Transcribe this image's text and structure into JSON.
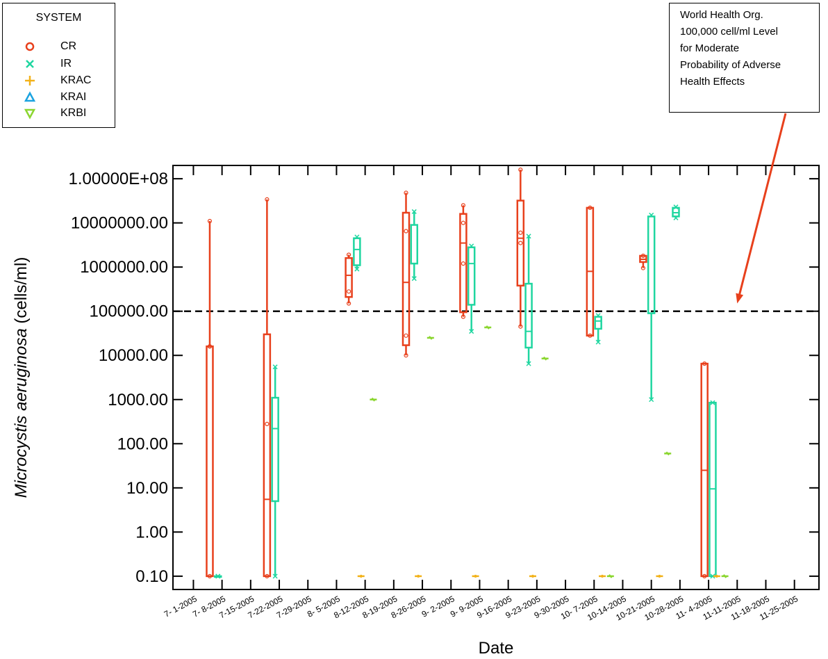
{
  "chart_data": {
    "type": "box",
    "xlabel": "Date",
    "ylabel_italic": "Microcystis aeruginosa",
    "ylabel_units": " (cells/ml)",
    "yscale": "log",
    "ylim": [
      0.05,
      200000000
    ],
    "yticks": [
      {
        "value": 0.1,
        "label": "0.10"
      },
      {
        "value": 1,
        "label": "1.00"
      },
      {
        "value": 10,
        "label": "10.00"
      },
      {
        "value": 100,
        "label": "100.00"
      },
      {
        "value": 1000,
        "label": "1000.00"
      },
      {
        "value": 10000,
        "label": "10000.00"
      },
      {
        "value": 100000,
        "label": "100000.00"
      },
      {
        "value": 1000000,
        "label": "1000000.00"
      },
      {
        "value": 10000000,
        "label": "10000000.00"
      },
      {
        "value": 100000000,
        "label": "1.00000E+08"
      }
    ],
    "xlim": [
      "2005-06-26",
      "2005-12-01"
    ],
    "xticks": [
      "7- 1-2005",
      "7- 8-2005",
      "7-15-2005",
      "7-22-2005",
      "7-29-2005",
      "8- 5-2005",
      "8-12-2005",
      "8-19-2005",
      "8-26-2005",
      "9- 2-2005",
      "9- 9-2005",
      "9-16-2005",
      "9-23-2005",
      "9-30-2005",
      "10- 7-2005",
      "10-14-2005",
      "10-21-2005",
      "10-28-2005",
      "11- 4-2005",
      "11-11-2005",
      "11-18-2005",
      "11-25-2005"
    ],
    "grid": false,
    "legend": {
      "title": "SYSTEM",
      "position": "top-left",
      "entries": [
        {
          "label": "CR",
          "marker": "circle",
          "color": "#e8401c"
        },
        {
          "label": "IR",
          "marker": "x",
          "color": "#1fd6a0"
        },
        {
          "label": "KRAC",
          "marker": "plus",
          "color": "#f2b21a"
        },
        {
          "label": "KRAI",
          "marker": "triangle-up",
          "color": "#1ba3e0"
        },
        {
          "label": "KRBI",
          "marker": "triangle-down",
          "color": "#8bd630"
        }
      ]
    },
    "threshold": {
      "value": 100000,
      "style": "dashed",
      "color": "#000000"
    },
    "annotation": {
      "lines": [
        "World Health Org.",
        "100,000 cell/ml Level",
        "for  Moderate",
        "Probability of Adverse",
        "Health Effects"
      ],
      "arrow_color": "#e8401c",
      "arrow_target": {
        "x": "2005-11-11",
        "y": 150000
      }
    },
    "series": [
      {
        "name": "CR",
        "color": "#e8401c",
        "boxes": [
          {
            "date": "2005-07-05",
            "whisker_low": 0.1,
            "q1": 0.1,
            "median": 16000,
            "q3": 16000,
            "whisker_high": 11000000,
            "points": [
              0.1,
              16000,
              16000,
              11000000
            ]
          },
          {
            "date": "2005-07-19",
            "whisker_low": 0.1,
            "q1": 0.1,
            "median": 5.5,
            "q3": 30000,
            "whisker_high": 34000000,
            "points": [
              0.1,
              280,
              34000000
            ]
          },
          {
            "date": "2005-08-08",
            "whisker_low": 150000,
            "q1": 210000,
            "median": 650000,
            "q3": 1600000,
            "whisker_high": 1900000,
            "points": [
              150000,
              280000,
              1900000
            ]
          },
          {
            "date": "2005-08-22",
            "whisker_low": 10000,
            "q1": 17000,
            "median": 450000,
            "q3": 17000000,
            "whisker_high": 48000000,
            "points": [
              10000,
              28000,
              6500000,
              48000000
            ]
          },
          {
            "date": "2005-09-05",
            "whisker_low": 75000,
            "q1": 95000,
            "median": 3500000,
            "q3": 16000000,
            "whisker_high": 25000000,
            "points": [
              75000,
              1200000,
              10000000,
              25000000
            ]
          },
          {
            "date": "2005-09-19",
            "whisker_low": 45000,
            "q1": 380000,
            "median": 4500000,
            "q3": 32000000,
            "whisker_high": 160000000,
            "points": [
              45000,
              3500000,
              6000000,
              160000000
            ]
          },
          {
            "date": "2005-10-06",
            "whisker_low": 28000,
            "q1": 28000,
            "median": 800000,
            "q3": 22000000,
            "whisker_high": 22000000,
            "points": [
              28000,
              22000000
            ]
          },
          {
            "date": "2005-10-19",
            "whisker_low": 950000,
            "q1": 1300000,
            "median": 1500000,
            "q3": 1800000,
            "whisker_high": 1800000,
            "points": [
              950000,
              1800000
            ]
          },
          {
            "date": "2005-11-03",
            "whisker_low": 0.1,
            "q1": 0.1,
            "median": 25,
            "q3": 6500,
            "whisker_high": 6500,
            "points": [
              0.1,
              6500
            ]
          }
        ]
      },
      {
        "name": "IR",
        "color": "#1fd6a0",
        "boxes": [
          {
            "date": "2005-07-07",
            "whisker_low": 0.1,
            "q1": 0.1,
            "median": 0.1,
            "q3": 0.1,
            "whisker_high": 0.1,
            "points": [
              0.1,
              0.1
            ]
          },
          {
            "date": "2005-07-21",
            "whisker_low": 0.1,
            "q1": 5,
            "median": 220,
            "q3": 1100,
            "whisker_high": 5500,
            "points": [
              0.1,
              5500
            ]
          },
          {
            "date": "2005-08-10",
            "whisker_low": 900000,
            "q1": 1100000,
            "median": 2500000,
            "q3": 4500000,
            "whisker_high": 4800000,
            "points": [
              900000,
              4800000
            ]
          },
          {
            "date": "2005-08-24",
            "whisker_low": 550000,
            "q1": 1200000,
            "median": 1200000,
            "q3": 9000000,
            "whisker_high": 18000000,
            "points": [
              550000,
              18000000
            ]
          },
          {
            "date": "2005-09-07",
            "whisker_low": 35000,
            "q1": 140000,
            "median": 1200000,
            "q3": 2800000,
            "whisker_high": 3000000,
            "points": [
              35000,
              3000000
            ]
          },
          {
            "date": "2005-09-21",
            "whisker_low": 6500,
            "q1": 15000,
            "median": 35000,
            "q3": 420000,
            "whisker_high": 5000000,
            "points": [
              6500,
              5000000
            ]
          },
          {
            "date": "2005-10-08",
            "whisker_low": 20000,
            "q1": 40000,
            "median": 60000,
            "q3": 75000,
            "whisker_high": 80000,
            "points": [
              20000,
              80000
            ]
          },
          {
            "date": "2005-10-21",
            "whisker_low": 1000,
            "q1": 90000,
            "median": 90000,
            "q3": 14000000,
            "whisker_high": 15000000,
            "points": [
              1000,
              15000000
            ]
          },
          {
            "date": "2005-10-27",
            "whisker_low": 13000000,
            "q1": 14000000,
            "median": 17000000,
            "q3": 22000000,
            "whisker_high": 23000000,
            "points": [
              13000000,
              23000000
            ]
          },
          {
            "date": "2005-11-05",
            "whisker_low": 0.1,
            "q1": 0.1,
            "median": 9.5,
            "q3": 850,
            "whisker_high": 850,
            "points": [
              0.1,
              850
            ]
          }
        ]
      },
      {
        "name": "KRAC",
        "color": "#f2b21a",
        "points": [
          {
            "date": "2005-08-11",
            "value": 0.1
          },
          {
            "date": "2005-08-25",
            "value": 0.1
          },
          {
            "date": "2005-09-08",
            "value": 0.1
          },
          {
            "date": "2005-09-22",
            "value": 0.1
          },
          {
            "date": "2005-10-09",
            "value": 0.1
          },
          {
            "date": "2005-10-23",
            "value": 0.1
          },
          {
            "date": "2005-11-06",
            "value": 0.1
          }
        ]
      },
      {
        "name": "KRAI",
        "color": "#1ba3e0",
        "points": []
      },
      {
        "name": "KRBI",
        "color": "#8bd630",
        "points": [
          {
            "date": "2005-08-14",
            "value": 1000
          },
          {
            "date": "2005-08-28",
            "value": 25000
          },
          {
            "date": "2005-09-11",
            "value": 43000
          },
          {
            "date": "2005-09-25",
            "value": 8500
          },
          {
            "date": "2005-10-11",
            "value": 0.1
          },
          {
            "date": "2005-10-25",
            "value": 60
          },
          {
            "date": "2005-11-08",
            "value": 0.1
          }
        ]
      }
    ]
  }
}
